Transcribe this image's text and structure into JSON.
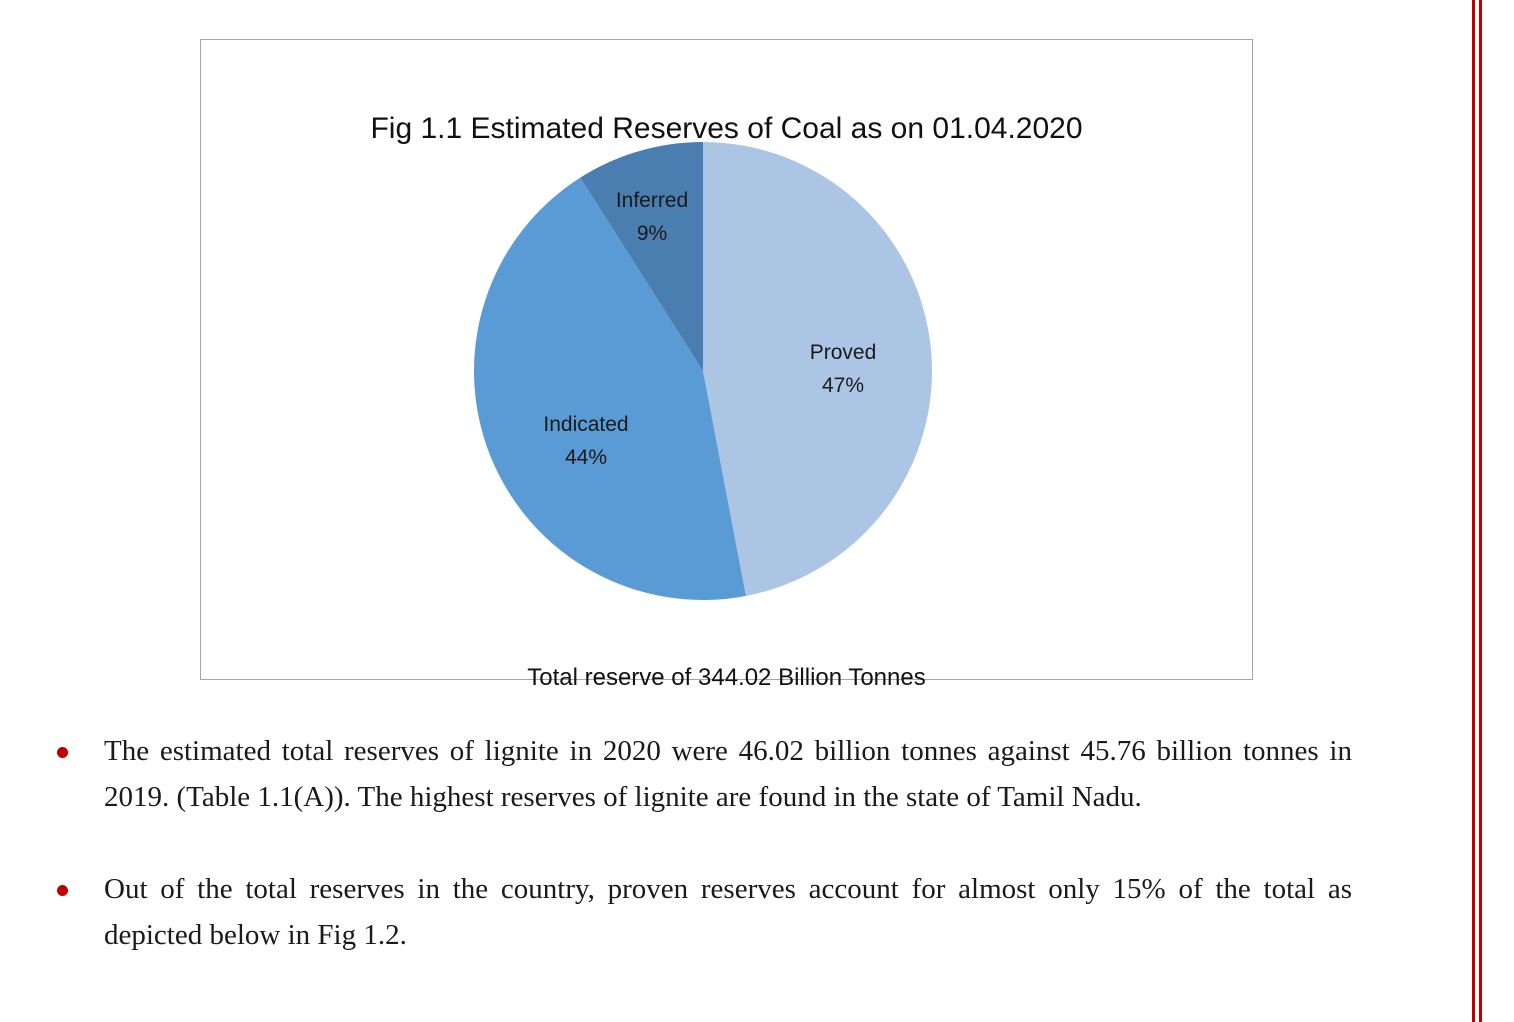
{
  "chart_data": {
    "type": "pie",
    "title": "Fig 1.1 Estimated Reserves of Coal as on 01.04.2020",
    "categories": [
      "Proved",
      "Indicated",
      "Inferred"
    ],
    "values": [
      47,
      44,
      9
    ],
    "value_labels": [
      "47%",
      "44%",
      "9%"
    ],
    "colors": [
      "#adc5e5",
      "#5b9bd5",
      "#4a7eb0"
    ],
    "start_angle": "12 o'clock",
    "direction": "clockwise",
    "legend": "none",
    "note": "Total  reserve of 344.02 Billion Tonnes"
  },
  "bullets": [
    "The estimated total reserves of lignite in 2020 were 46.02 billion tonnes against 45.76 billion tonnes in 2019. (Table 1.1(A)). The highest reserves of lignite are found in the state of Tamil Nadu.",
    "Out of the total reserves in the country, proven reserves account for almost only 15% of the total as depicted below in Fig 1.2."
  ],
  "colors": {
    "bullet": "#c00000",
    "rule": "#c00000",
    "border": "#a6a6a6"
  }
}
